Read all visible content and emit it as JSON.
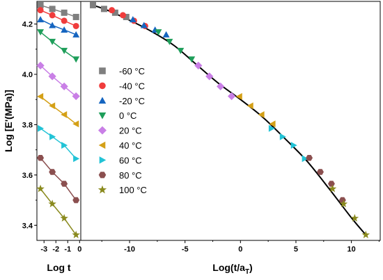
{
  "chart_data": {
    "type": "scatter",
    "ylabel": "Log [E'(MPa)]",
    "ylim": [
      3.34,
      4.29
    ],
    "yticks": [
      "3.4",
      "3.6",
      "3.8",
      "4.0",
      "4.2"
    ],
    "left_panel": {
      "xlabel": "Log t",
      "xlim": [
        -3.6,
        0.1
      ],
      "xticks": [
        "-3",
        "-2",
        "-1",
        "0"
      ]
    },
    "right_panel": {
      "xlabel": "Log(t/a",
      "xlabel_sub": "T",
      "xlabel_end": ")",
      "xlim": [
        -14.4,
        12.6
      ],
      "xticks": [
        "-10",
        "-5",
        "0",
        "5",
        "10"
      ]
    },
    "legend_position": "center-left of right panel",
    "series": [
      {
        "name": "-60 °C",
        "color": "#7f7f7f",
        "marker": "square",
        "raw_x": [
          -3.3,
          -2.3,
          -1.3,
          -0.3
        ],
        "raw_y": [
          4.275,
          4.26,
          4.245,
          4.228
        ],
        "shift_x": [
          -13.3,
          -12.3,
          -11.3,
          -10.3
        ],
        "shift_y": [
          4.275,
          4.26,
          4.245,
          4.228
        ]
      },
      {
        "name": "-40 °C",
        "color": "#f03c3c",
        "marker": "circle",
        "raw_x": [
          -3.3,
          -2.3,
          -1.3,
          -0.3
        ],
        "raw_y": [
          4.255,
          4.235,
          4.213,
          4.192
        ],
        "shift_x": [
          -11.6,
          -10.6,
          -9.6,
          -8.6
        ],
        "shift_y": [
          4.255,
          4.235,
          4.213,
          4.192
        ]
      },
      {
        "name": "-20 °C",
        "color": "#1565c0",
        "marker": "triangle-up",
        "raw_x": [
          -3.3,
          -2.3,
          -1.3,
          -0.3
        ],
        "raw_y": [
          4.218,
          4.195,
          4.177,
          4.158
        ],
        "shift_x": [
          -9.7,
          -8.7,
          -7.7,
          -6.7
        ],
        "shift_y": [
          4.218,
          4.195,
          4.177,
          4.158
        ]
      },
      {
        "name": "0 °C",
        "color": "#1e9e5a",
        "marker": "triangle-down",
        "raw_x": [
          -3.3,
          -2.3,
          -1.3,
          -0.3
        ],
        "raw_y": [
          4.168,
          4.13,
          4.094,
          4.06
        ],
        "shift_x": [
          -7.4,
          -6.4,
          -5.4,
          -4.4
        ],
        "shift_y": [
          4.168,
          4.13,
          4.094,
          4.06
        ]
      },
      {
        "name": "20 °C",
        "color": "#c97fe6",
        "marker": "diamond",
        "raw_x": [
          -3.3,
          -2.3,
          -1.3,
          -0.3
        ],
        "raw_y": [
          4.035,
          3.992,
          3.952,
          3.913
        ],
        "shift_x": [
          -3.8,
          -2.8,
          -1.8,
          -0.8
        ],
        "shift_y": [
          4.035,
          3.992,
          3.952,
          3.913
        ]
      },
      {
        "name": "40 °C",
        "color": "#d4a017",
        "marker": "triangle-left",
        "raw_x": [
          -3.3,
          -2.3,
          -1.3,
          -0.3
        ],
        "raw_y": [
          3.912,
          3.875,
          3.84,
          3.803
        ],
        "shift_x": [
          -0.1,
          0.9,
          1.9,
          2.9
        ],
        "shift_y": [
          3.912,
          3.875,
          3.84,
          3.803
        ]
      },
      {
        "name": "60 °C",
        "color": "#22c3d6",
        "marker": "triangle-right",
        "raw_x": [
          -3.3,
          -2.3,
          -1.3,
          -0.3
        ],
        "raw_y": [
          3.785,
          3.752,
          3.718,
          3.665
        ],
        "shift_x": [
          2.8,
          3.8,
          4.8,
          5.8
        ],
        "shift_y": [
          3.785,
          3.752,
          3.718,
          3.665
        ]
      },
      {
        "name": "80 °C",
        "color": "#8b4f4f",
        "marker": "hexagon",
        "raw_x": [
          -3.3,
          -2.3,
          -1.3,
          -0.3
        ],
        "raw_y": [
          3.668,
          3.612,
          3.565,
          3.5
        ],
        "shift_x": [
          6.2,
          7.2,
          8.2,
          9.2
        ],
        "shift_y": [
          3.668,
          3.612,
          3.565,
          3.5
        ]
      },
      {
        "name": "100 °C",
        "color": "#8a8a1e",
        "marker": "star",
        "raw_x": [
          -3.3,
          -2.3,
          -1.3,
          -0.3
        ],
        "raw_y": [
          3.545,
          3.485,
          3.428,
          3.362
        ],
        "shift_x": [
          8.3,
          9.3,
          10.3,
          11.3
        ],
        "shift_y": [
          3.545,
          3.485,
          3.428,
          3.362
        ]
      }
    ],
    "master_curve": {
      "color": "#000000",
      "x": [
        -13.3,
        -12,
        -10,
        -8,
        -6,
        -4,
        -2,
        0,
        2,
        4,
        6,
        8,
        10,
        11.3
      ],
      "y": [
        4.275,
        4.255,
        4.215,
        4.17,
        4.115,
        4.04,
        3.965,
        3.9,
        3.83,
        3.745,
        3.655,
        3.545,
        3.43,
        3.362
      ]
    }
  }
}
